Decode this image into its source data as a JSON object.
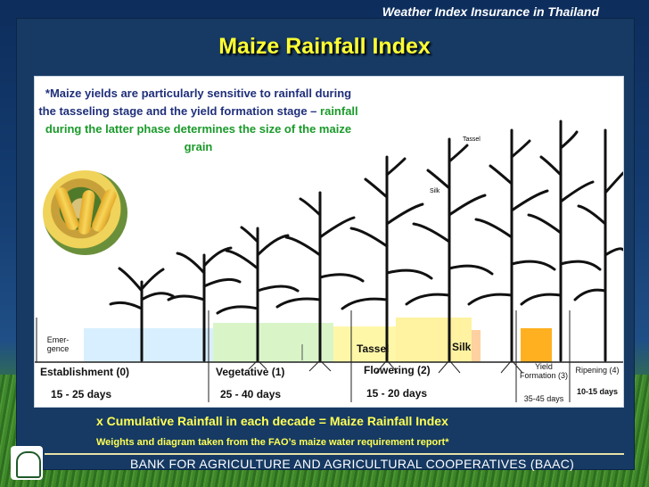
{
  "header": {
    "subtitle": "Weather Index Insurance in Thailand",
    "title": "Maize Rainfall Index"
  },
  "note": {
    "part1": "*Maize yields are particularly sensitive to rainfall during the tasseling stage and the yield formation stage – ",
    "part2": "rainfall during the latter phase determines the size of the maize grain"
  },
  "figure": {
    "top_labels": {
      "silk": "Silk",
      "tassel": "Tassel"
    },
    "bar_labels": {
      "emergence": "Emer-\ngence",
      "tassel": "Tassel",
      "silk": "Silk"
    },
    "stages": [
      {
        "name": "Establishment (0)",
        "days": "15 - 25 days"
      },
      {
        "name": "Vegetative (1)",
        "days": "25 - 40 days"
      },
      {
        "name": "Flowering (2)",
        "days": "15 - 20 days"
      },
      {
        "name": "Yield Formation (3)",
        "days": "35-45 days"
      },
      {
        "name": "Ripening (4)",
        "days": "10-15 days"
      }
    ],
    "colors": {
      "establishment": "#d8efff",
      "vegetative": "#d9f5c8",
      "flowering": "#fff7a8",
      "yield": "#ffb020"
    }
  },
  "footer": {
    "formula": "x Cumulative Rainfall in each decade = Maize Rainfall Index",
    "source": "Weights and diagram taken from the FAO’s maize water requirement report*",
    "bank": "BANK FOR AGRICULTURE AND AGRICULTURAL COOPERATIVES (BAAC)"
  }
}
